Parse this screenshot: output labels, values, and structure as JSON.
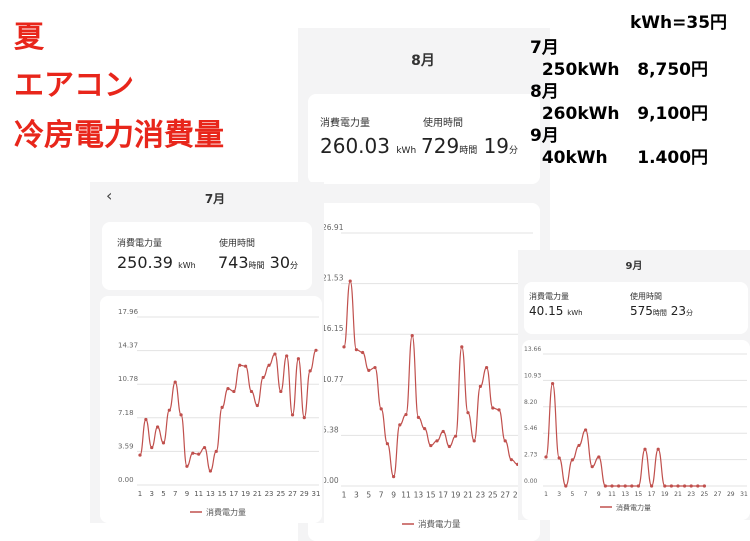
{
  "overlay": {
    "title_lines": [
      "夏",
      "エアコン",
      "冷房電力消費量"
    ],
    "rate": "kWh=35円",
    "rows": [
      {
        "month": "7月",
        "detail": "  250kWh   8,750円"
      },
      {
        "month": "8月",
        "detail": "  260kWh   9,100円"
      },
      {
        "month": "9月",
        "detail": "  40kWh     1.400円"
      }
    ]
  },
  "screens": {
    "july": {
      "month": "7月",
      "back": "‹",
      "energy_label": "消費電力量",
      "energy_value": "250.39",
      "energy_unit": "kWh",
      "time_label": "使用時間",
      "hours": "743",
      "hours_unit": "時間",
      "minutes": "30",
      "minutes_unit": "分",
      "legend": "消費電力量"
    },
    "august": {
      "month": "8月",
      "energy_label": "消費電力量",
      "energy_value": "260.03",
      "energy_unit": "kWh",
      "time_label": "使用時間",
      "hours": "729",
      "hours_unit": "時間",
      "minutes": "19",
      "minutes_unit": "分",
      "legend": "消費電力量"
    },
    "september": {
      "month": "9月",
      "energy_label": "消費電力量",
      "energy_value": "40.15",
      "energy_unit": "kWh",
      "time_label": "使用時間",
      "hours": "575",
      "hours_unit": "時間",
      "minutes": "23",
      "minutes_unit": "分",
      "legend": "消費電力量"
    }
  },
  "colors": {
    "line": "#c0504d",
    "title_red": "#e8261b"
  },
  "chart_data": [
    {
      "type": "line",
      "name": "july",
      "yticks": [
        "0.00",
        "3.59",
        "7.18",
        "10.78",
        "14.37",
        "17.96"
      ],
      "ylim": [
        0,
        17.96
      ],
      "xticks": [
        "1",
        "3",
        "5",
        "7",
        "9",
        "11",
        "13",
        "15",
        "17",
        "19",
        "21",
        "23",
        "25",
        "27",
        "29",
        "31"
      ],
      "x": [
        1,
        2,
        3,
        4,
        5,
        6,
        7,
        8,
        9,
        10,
        11,
        12,
        13,
        14,
        15,
        16,
        17,
        18,
        19,
        20,
        21,
        22,
        23,
        24,
        25,
        26,
        27,
        28,
        29,
        30,
        31
      ],
      "values": [
        3.2,
        7.0,
        4.0,
        6.2,
        4.5,
        8.0,
        11.0,
        7.5,
        2.0,
        3.4,
        3.3,
        4.0,
        1.5,
        3.6,
        8.3,
        10.3,
        10.0,
        12.8,
        12.7,
        10.0,
        8.5,
        11.5,
        12.8,
        14.0,
        10.0,
        13.8,
        7.5,
        13.5,
        7.2,
        12.2,
        14.4
      ],
      "legend": [
        "消費電力量"
      ]
    },
    {
      "type": "line",
      "name": "august",
      "yticks": [
        "0.00",
        "5.38",
        "10.77",
        "16.15",
        "21.53",
        "26.91"
      ],
      "ylim": [
        0,
        26.91
      ],
      "xticks": [
        "1",
        "3",
        "5",
        "7",
        "9",
        "11",
        "13",
        "15",
        "17",
        "19",
        "21",
        "23",
        "25",
        "27",
        "29",
        "31"
      ],
      "x": [
        1,
        2,
        3,
        4,
        5,
        6,
        7,
        8,
        9,
        10,
        11,
        12,
        13,
        14,
        15,
        16,
        17,
        18,
        19,
        20,
        21,
        22,
        23,
        24,
        25,
        26,
        27,
        28,
        29,
        30,
        31
      ],
      "values": [
        14.8,
        21.8,
        14.5,
        14.2,
        12.3,
        12.6,
        8.2,
        4.5,
        1.0,
        6.5,
        7.6,
        16.0,
        7.3,
        6.1,
        4.3,
        4.8,
        5.8,
        4.2,
        5.3,
        14.8,
        7.8,
        4.8,
        10.6,
        12.6,
        8.3,
        8.1,
        4.8,
        2.8,
        2.3,
        5.2,
        4.6
      ],
      "legend": [
        "消費電力量"
      ]
    },
    {
      "type": "line",
      "name": "september",
      "yticks": [
        "0.00",
        "2.73",
        "5.46",
        "8.20",
        "10.93",
        "13.66"
      ],
      "ylim": [
        0,
        13.66
      ],
      "xticks": [
        "1",
        "3",
        "5",
        "7",
        "9",
        "11",
        "13",
        "15",
        "17",
        "19",
        "21",
        "23",
        "25",
        "27",
        "29",
        "31"
      ],
      "x": [
        1,
        2,
        3,
        4,
        5,
        6,
        7,
        8,
        9,
        10,
        11,
        12,
        13,
        14,
        15,
        16,
        17,
        18,
        19,
        20,
        21,
        22,
        23,
        24,
        25
      ],
      "values": [
        3.0,
        10.6,
        2.9,
        0,
        2.7,
        4.2,
        5.8,
        2.0,
        3.0,
        0,
        0,
        0,
        0,
        0,
        0,
        3.8,
        0,
        3.8,
        0,
        0,
        0,
        0,
        0,
        0,
        0
      ],
      "legend": [
        "消費電力量"
      ]
    }
  ]
}
